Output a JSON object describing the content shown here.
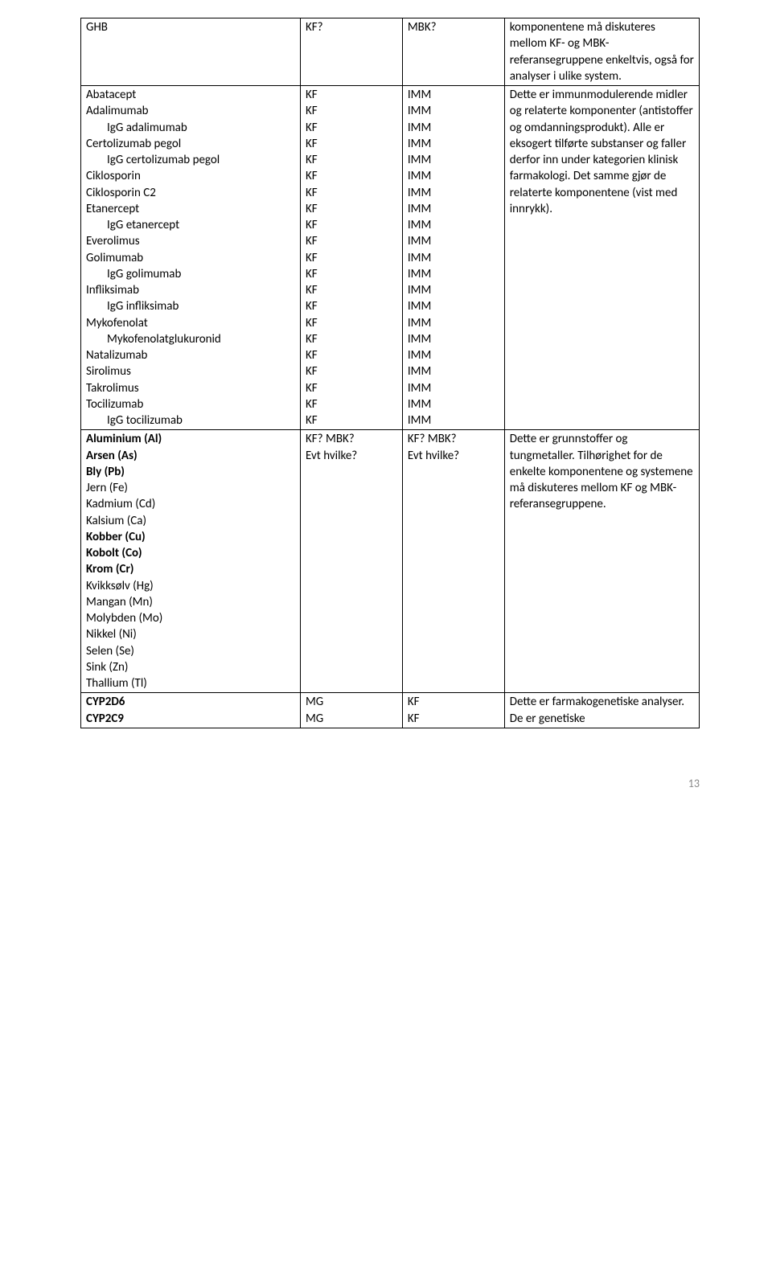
{
  "row1": {
    "name": "GHB",
    "c2": "KF?",
    "c3": "MBK?",
    "desc": "komponentene må diskuteres mellom KF- og MBK-referansegruppene enkeltvis, også for analyser i ulike system."
  },
  "row2": {
    "names": [
      {
        "label": "Abatacept",
        "indent": false
      },
      {
        "label": "Adalimumab",
        "indent": false
      },
      {
        "label": "IgG adalimumab",
        "indent": true
      },
      {
        "label": "Certolizumab pegol",
        "indent": false
      },
      {
        "label": "IgG certolizumab pegol",
        "indent": true
      },
      {
        "label": "Ciklosporin",
        "indent": false
      },
      {
        "label": "Ciklosporin C2",
        "indent": false
      },
      {
        "label": "Etanercept",
        "indent": false
      },
      {
        "label": "IgG etanercept",
        "indent": true
      },
      {
        "label": "Everolimus",
        "indent": false
      },
      {
        "label": "Golimumab",
        "indent": false
      },
      {
        "label": "IgG golimumab",
        "indent": true
      },
      {
        "label": "Infliksimab",
        "indent": false
      },
      {
        "label": "IgG infliksimab",
        "indent": true
      },
      {
        "label": "Mykofenolat",
        "indent": false
      },
      {
        "label": "Mykofenolatglukuronid",
        "indent": true
      },
      {
        "label": "Natalizumab",
        "indent": false
      },
      {
        "label": "Sirolimus",
        "indent": false
      },
      {
        "label": "Takrolimus",
        "indent": false
      },
      {
        "label": "Tocilizumab",
        "indent": false
      },
      {
        "label": "IgG tocilizumab",
        "indent": true
      }
    ],
    "c2": [
      "KF",
      "KF",
      "KF",
      "KF",
      "KF",
      "KF",
      "KF",
      "KF",
      "KF",
      "KF",
      "KF",
      "KF",
      "KF",
      "KF",
      "KF",
      "KF",
      "KF",
      "KF",
      "KF",
      "KF",
      "KF"
    ],
    "c3": [
      "IMM",
      "IMM",
      "IMM",
      "IMM",
      "IMM",
      "IMM",
      "IMM",
      "IMM",
      "IMM",
      "IMM",
      "IMM",
      "IMM",
      "IMM",
      "IMM",
      "IMM",
      "IMM",
      "IMM",
      "IMM",
      "IMM",
      "IMM",
      "IMM"
    ],
    "desc": "Dette er immunmodulerende midler og relaterte komponenter (antistoffer og omdanningsprodukt). Alle er eksogert tilførte substanser og faller derfor inn under kategorien klinisk farmakologi. Det samme gjør de relaterte komponentene (vist med innrykk)."
  },
  "row3": {
    "names": [
      {
        "label": "Aluminium (Al)",
        "bold": true
      },
      {
        "label": "Arsen (As)",
        "bold": true
      },
      {
        "label": "Bly (Pb)",
        "bold": true
      },
      {
        "label": "Jern (Fe)",
        "bold": false
      },
      {
        "label": "Kadmium (Cd)",
        "bold": false
      },
      {
        "label": "Kalsium (Ca)",
        "bold": false
      },
      {
        "label": "Kobber (Cu)",
        "bold": true
      },
      {
        "label": "Kobolt (Co)",
        "bold": true
      },
      {
        "label": "Krom (Cr)",
        "bold": true
      },
      {
        "label": "Kvikksølv (Hg)",
        "bold": false
      },
      {
        "label": "Mangan (Mn)",
        "bold": false
      },
      {
        "label": "Molybden (Mo)",
        "bold": false
      },
      {
        "label": "Nikkel (Ni)",
        "bold": false
      },
      {
        "label": "Selen (Se)",
        "bold": false
      },
      {
        "label": "Sink (Zn)",
        "bold": false
      },
      {
        "label": "Thallium (Tl)",
        "bold": false
      }
    ],
    "c2": [
      "KF? MBK?",
      "Evt hvilke?"
    ],
    "c3": [
      "KF? MBK?",
      "Evt hvilke?"
    ],
    "desc": "Dette er grunnstoffer og tungmetaller. Tilhørighet for de enkelte komponentene og systemene må diskuteres mellom KF og MBK-referansegruppene."
  },
  "row4": {
    "names": [
      "CYP2D6",
      "CYP2C9"
    ],
    "c2": [
      "MG",
      "MG"
    ],
    "c3": [
      "KF",
      "KF"
    ],
    "desc": "Dette er farmakogenetiske analyser. De er genetiske"
  },
  "pageNumber": "13"
}
